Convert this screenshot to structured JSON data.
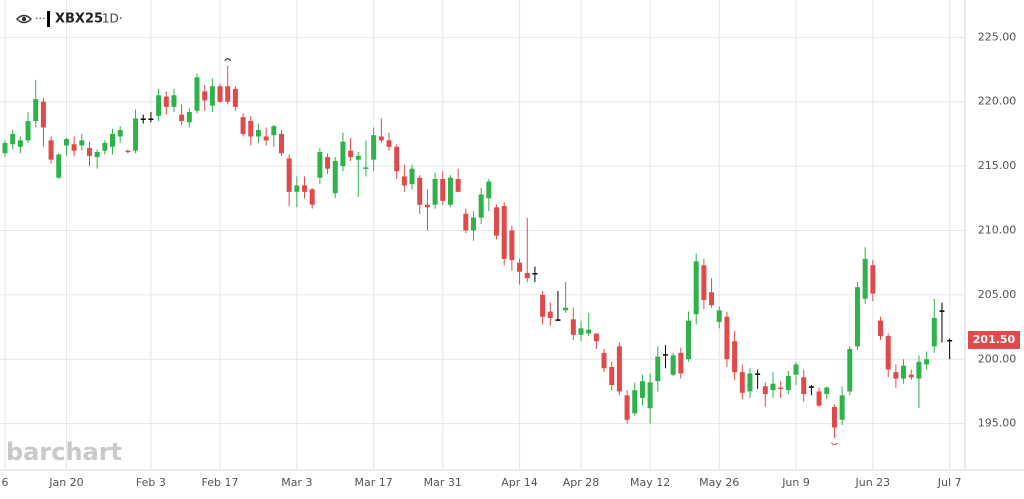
{
  "chart_data": {
    "type": "candlestick",
    "symbol": "XBX25",
    "interval": "·1D·",
    "watermark": "barchart",
    "up_color": "#2fb24a",
    "down_color": "#e04a4a",
    "flat_color": "#000000",
    "ylim": [
      191.4,
      227.9
    ],
    "yticks": [
      {
        "value": 195,
        "label": "195.00"
      },
      {
        "value": 200,
        "label": "200.00"
      },
      {
        "value": 205,
        "label": "205.00"
      },
      {
        "value": 210,
        "label": "210.00"
      },
      {
        "value": 215,
        "label": "215.00"
      },
      {
        "value": 220,
        "label": "220.00"
      },
      {
        "value": 225,
        "label": "225.00"
      }
    ],
    "xticks": [
      {
        "value": 0,
        "label": "6"
      },
      {
        "value": 8,
        "label": "Jan 20"
      },
      {
        "value": 19,
        "label": "Feb 3"
      },
      {
        "value": 28,
        "label": "Feb 17"
      },
      {
        "value": 38,
        "label": "Mar 3"
      },
      {
        "value": 48,
        "label": "Mar 17"
      },
      {
        "value": 57,
        "label": "Mar 31"
      },
      {
        "value": 67,
        "label": "Apr 14"
      },
      {
        "value": 75,
        "label": "Apr 28"
      },
      {
        "value": 84,
        "label": "May 12"
      },
      {
        "value": 93,
        "label": "May 26"
      },
      {
        "value": 103,
        "label": "Jun 9"
      },
      {
        "value": 113,
        "label": "Jun 23"
      },
      {
        "value": 123,
        "label": "Jul 7"
      }
    ],
    "last_price": {
      "value": 201.5,
      "label": "201.50"
    },
    "open": [
      216.0,
      216.7,
      216.5,
      217.0,
      218.5,
      220.0,
      217.0,
      214.1,
      216.6,
      216.7,
      216.6,
      216.4,
      215.7,
      216.2,
      216.5,
      217.3,
      216.2,
      216.2,
      218.7,
      218.7,
      218.9,
      220.4,
      219.6,
      219.0,
      218.4,
      219.3,
      220.8,
      219.7,
      221.2,
      221.2,
      221.0,
      218.8,
      218.5,
      217.3,
      217.3,
      217.4,
      217.5,
      215.6,
      213.0,
      213.5,
      213.2,
      214.1,
      215.7,
      212.9,
      215.0,
      216.2,
      215.5,
      214.8,
      215.5,
      217.3,
      217.0,
      216.5,
      214.2,
      213.6,
      214.1,
      212.0,
      212.0,
      214.0,
      212.0,
      214.0,
      211.3,
      210.0,
      211.0,
      212.5,
      211.8,
      211.9,
      210.0,
      207.5,
      206.7,
      206.7,
      205.0,
      203.7,
      203.1,
      203.8,
      203.1,
      201.9,
      202.0,
      202.0,
      200.5,
      199.4,
      201.0,
      197.2,
      195.8,
      197.0,
      196.2,
      198.3,
      200.4,
      198.8,
      200.5,
      200.0,
      203.5,
      207.3,
      205.2,
      202.9,
      203.3,
      201.4,
      199.0,
      197.5,
      198.9,
      197.9,
      197.6,
      197.8,
      197.6,
      198.8,
      198.6,
      197.9,
      197.5,
      197.3,
      196.3,
      195.3,
      197.5,
      201.0,
      204.7,
      207.3,
      203.0,
      201.8,
      199.0,
      198.5,
      198.8,
      198.5,
      199.6,
      201.0,
      203.8,
      201.5
    ],
    "high": [
      217.0,
      217.8,
      217.3,
      219.2,
      221.7,
      220.3,
      217.3,
      216.0,
      217.2,
      217.3,
      217.5,
      216.9,
      216.3,
      217.0,
      217.9,
      218.1,
      216.3,
      219.4,
      219.0,
      219.2,
      221.0,
      220.8,
      221.0,
      219.8,
      219.5,
      222.2,
      221.3,
      221.8,
      221.4,
      222.8,
      221.2,
      219.1,
      218.9,
      218.3,
      218.0,
      218.2,
      217.8,
      215.9,
      214.2,
      214.2,
      213.3,
      216.4,
      216.0,
      215.7,
      217.6,
      217.2,
      216.1,
      217.0,
      218.0,
      218.7,
      217.6,
      216.7,
      215.1,
      215.1,
      214.3,
      213.2,
      214.5,
      214.6,
      214.3,
      214.8,
      211.7,
      211.5,
      213.3,
      214.0,
      212.0,
      212.2,
      210.4,
      207.8,
      211.0,
      207.2,
      205.3,
      204.4,
      205.3,
      206.0,
      204.0,
      203.0,
      203.6,
      202.0,
      200.8,
      199.8,
      201.3,
      197.6,
      198.2,
      198.8,
      198.9,
      201.0,
      201.1,
      200.5,
      200.9,
      203.7,
      208.2,
      207.8,
      206.3,
      204.1,
      203.7,
      202.2,
      199.6,
      199.3,
      199.2,
      198.2,
      199.0,
      198.3,
      199.1,
      199.8,
      199.2,
      198.0,
      197.8,
      197.9,
      196.5,
      197.9,
      201.0,
      206.0,
      208.7,
      207.7,
      203.3,
      202.0,
      199.6,
      200.0,
      199.2,
      200.3,
      200.6,
      204.7,
      204.4,
      201.6
    ],
    "low": [
      215.7,
      216.3,
      216.0,
      216.8,
      218.0,
      216.5,
      215.2,
      214.0,
      215.8,
      215.8,
      216.2,
      215.0,
      214.8,
      215.9,
      215.9,
      216.8,
      216.0,
      216.0,
      218.3,
      218.4,
      218.5,
      219.0,
      219.2,
      218.2,
      218.0,
      219.1,
      219.3,
      219.2,
      219.9,
      219.8,
      219.3,
      217.3,
      216.6,
      216.8,
      216.6,
      216.5,
      215.8,
      211.9,
      211.8,
      212.5,
      211.7,
      213.6,
      214.4,
      212.5,
      214.6,
      215.4,
      212.6,
      214.2,
      214.6,
      216.8,
      216.2,
      214.0,
      213.0,
      213.2,
      211.3,
      210.0,
      211.7,
      212.0,
      211.8,
      213.0,
      209.8,
      209.2,
      210.5,
      211.5,
      209.3,
      207.3,
      206.9,
      205.8,
      206.0,
      206.0,
      202.7,
      202.6,
      203.0,
      203.6,
      201.5,
      201.4,
      201.8,
      200.8,
      199.0,
      197.6,
      197.2,
      195.0,
      195.6,
      196.4,
      195.0,
      197.5,
      199.3,
      198.7,
      198.5,
      199.8,
      202.7,
      203.9,
      204.0,
      202.4,
      199.4,
      198.4,
      196.9,
      197.0,
      197.7,
      196.3,
      197.0,
      197.0,
      197.3,
      198.0,
      196.7,
      197.2,
      196.3,
      196.9,
      193.9,
      194.9,
      197.2,
      200.7,
      204.3,
      204.5,
      201.5,
      198.6,
      197.8,
      198.1,
      198.4,
      196.2,
      199.2,
      200.5,
      201.3,
      200.0
    ],
    "close": [
      216.8,
      217.5,
      217.0,
      218.5,
      220.2,
      218.0,
      215.5,
      215.9,
      217.1,
      216.2,
      217.0,
      215.8,
      216.1,
      216.8,
      217.5,
      217.8,
      216.1,
      218.7,
      218.7,
      218.7,
      220.5,
      219.6,
      220.5,
      218.5,
      219.2,
      221.9,
      220.1,
      221.2,
      220.0,
      220.0,
      219.6,
      217.5,
      217.3,
      217.8,
      217.0,
      218.1,
      216.0,
      213.0,
      213.5,
      213.0,
      212.0,
      216.1,
      214.8,
      215.4,
      216.9,
      215.7,
      215.8,
      214.9,
      217.4,
      217.0,
      216.5,
      214.6,
      213.5,
      214.8,
      212.0,
      211.8,
      214.0,
      212.3,
      214.1,
      213.0,
      210.0,
      211.0,
      212.8,
      213.8,
      209.6,
      207.8,
      207.7,
      206.8,
      206.3,
      206.7,
      203.3,
      203.2,
      203.1,
      204.0,
      201.9,
      202.4,
      202.3,
      201.4,
      199.3,
      198.0,
      197.5,
      195.3,
      197.6,
      198.3,
      198.2,
      200.2,
      200.4,
      200.3,
      198.9,
      203.0,
      207.6,
      204.6,
      204.2,
      203.8,
      200.0,
      199.0,
      197.4,
      198.9,
      198.9,
      197.3,
      198.1,
      197.7,
      198.7,
      199.6,
      197.3,
      197.9,
      196.4,
      197.8,
      194.7,
      197.2,
      200.8,
      205.6,
      207.8,
      205.1,
      201.8,
      199.2,
      198.5,
      199.5,
      198.6,
      199.8,
      200.0,
      203.2,
      203.8,
      201.5
    ]
  }
}
